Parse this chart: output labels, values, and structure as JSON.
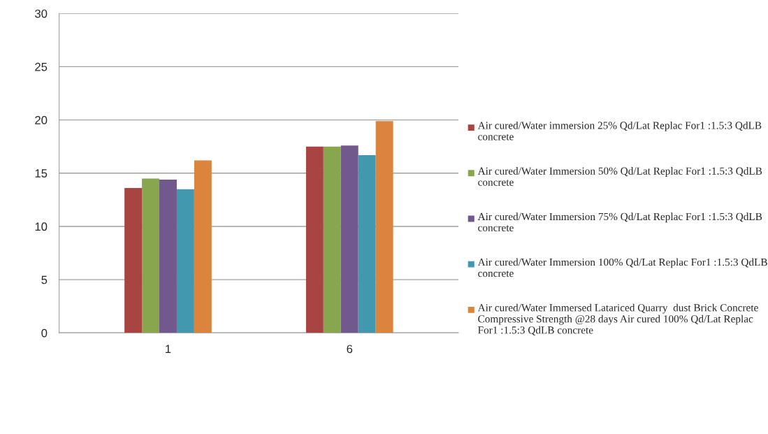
{
  "chart_data": {
    "type": "bar",
    "categories": [
      "1",
      "6"
    ],
    "series": [
      {
        "name": "Air cured/Water immersion 25% Qd/Lat Replac For1 :1.5:3 QdLB concrete",
        "color": "#a84441",
        "values": [
          13.6,
          17.5
        ]
      },
      {
        "name": "Air cured/Water Immersion 50% Qd/Lat Replac For1 :1.5:3 QdLB concrete",
        "color": "#88a64e",
        "values": [
          14.5,
          17.5
        ]
      },
      {
        "name": "Air cured/Water Immersion 75% Qd/Lat Replac For1 :1.5:3 QdLB concrete",
        "color": "#71598e",
        "values": [
          14.4,
          17.6
        ]
      },
      {
        "name": "Air cured/Water Immersion 100% Qd/Lat Replac For1 :1.5:3 QdLB concrete",
        "color": "#4198af",
        "values": [
          13.5,
          16.7
        ]
      },
      {
        "name": "Air cured/Water Immersed Latariced Quarry  dust Brick Concrete Compressive Strength @28 days Air cured 100% Qd/Lat Replac For1 :1.5:3 QdLB concrete",
        "color": "#db843d",
        "values": [
          16.2,
          19.9
        ]
      }
    ],
    "ylim": [
      0,
      30
    ],
    "yticks": [
      0,
      5,
      10,
      15,
      20,
      25,
      30
    ],
    "grid": "y",
    "legend": "right"
  }
}
